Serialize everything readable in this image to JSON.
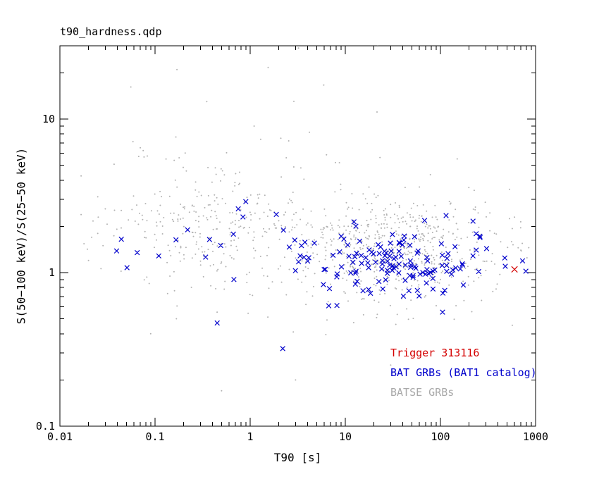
{
  "chart_data": {
    "type": "scatter",
    "title": "t90_hardness.qdp",
    "xlabel": "T90 [s]",
    "ylabel": "S(50−100 keV)/S(25−50 keV)",
    "xscale": "log",
    "yscale": "log",
    "xlim": [
      0.01,
      1000
    ],
    "ylim": [
      0.1,
      30
    ],
    "grid": false,
    "x_ticks": [
      {
        "value": 0.01,
        "label": "0.01"
      },
      {
        "value": 0.1,
        "label": "0.1"
      },
      {
        "value": 1,
        "label": "1"
      },
      {
        "value": 10,
        "label": "10"
      },
      {
        "value": 100,
        "label": "100"
      },
      {
        "value": 1000,
        "label": "1000"
      }
    ],
    "y_ticks": [
      {
        "value": 0.1,
        "label": "0.1"
      },
      {
        "value": 1,
        "label": "1"
      },
      {
        "value": 10,
        "label": "10"
      }
    ],
    "legend": [
      {
        "label": "Trigger 313116",
        "color": "#d40000"
      },
      {
        "label": "BAT GRBs (BAT1 catalog)",
        "color": "#0000cc"
      },
      {
        "label": "BATSE GRBs",
        "color": "#a9a9a9"
      }
    ],
    "seed": 20231,
    "series": [
      {
        "name": "BATSE GRBs",
        "color": "#b2b2b2",
        "marker": "dot",
        "size": 1,
        "clusters": [
          {
            "n": 620,
            "logx_mean": 1.5,
            "logx_sigma": 0.55,
            "logy_mean": 0.16,
            "logy_sigma": 0.17
          },
          {
            "n": 260,
            "logx_mean": -0.45,
            "logx_sigma": 0.5,
            "logy_mean": 0.3,
            "logy_sigma": 0.2
          },
          {
            "n": 70,
            "logx_mean": 0.7,
            "logx_sigma": 1.2,
            "logy_mean": 0.25,
            "logy_sigma": 0.5
          }
        ],
        "points": [
          [
            0.17,
            21
          ],
          [
            0.35,
            13
          ],
          [
            2.1,
            7.5
          ],
          [
            0.07,
            6.5
          ],
          [
            1.1,
            9
          ],
          [
            4.2,
            8.2
          ],
          [
            0.5,
            0.17
          ],
          [
            3,
            0.2
          ],
          [
            30,
            0.25
          ],
          [
            0.09,
            0.4
          ],
          [
            150,
            5.5
          ],
          [
            600,
            2.3
          ],
          [
            0.025,
            1.8
          ],
          [
            0.03,
            2.6
          ],
          [
            0.02,
            1.2
          ],
          [
            700,
            1.4
          ]
        ]
      },
      {
        "name": "BAT GRBs (BAT1 catalog)",
        "color": "#0000cc",
        "marker": "x",
        "size": 3.3,
        "clusters": [
          {
            "n": 150,
            "logx_mean": 1.55,
            "logx_sigma": 0.5,
            "logy_mean": 0.07,
            "logy_sigma": 0.12
          },
          {
            "n": 10,
            "logx_mean": -0.8,
            "logx_sigma": 0.45,
            "logy_mean": 0.17,
            "logy_sigma": 0.12
          }
        ],
        "points": [
          [
            0.45,
            0.47
          ],
          [
            2.2,
            0.32
          ],
          [
            0.9,
            2.9
          ],
          [
            480,
            1.1
          ],
          [
            0.065,
            1.35
          ],
          [
            0.75,
            2.6
          ],
          [
            0.22,
            1.9
          ]
        ]
      },
      {
        "name": "Trigger 313116",
        "color": "#d40000",
        "marker": "x",
        "size": 4.2,
        "points": [
          [
            600,
            1.05
          ]
        ]
      }
    ]
  }
}
